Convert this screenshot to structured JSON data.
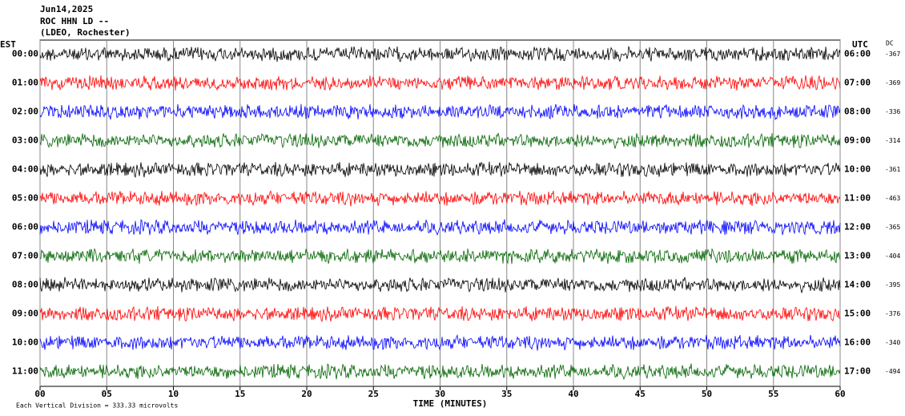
{
  "chart_data": {
    "type": "seismogram",
    "title": "Jun14,2025",
    "subtitle": "ROC HHN LD --",
    "station": "(LDEO, Rochester)",
    "left_axis_label": "EST",
    "right_axis_label": "UTC",
    "dc_label": "DC",
    "x_label": "TIME (MINUTES)",
    "scale_note": "Each Vertical Division =  333.33 microvolts",
    "xlim": [
      0,
      60
    ],
    "xticks": [
      {
        "value": 0,
        "label": "00"
      },
      {
        "value": 5,
        "label": "05"
      },
      10,
      15,
      20,
      25,
      30,
      35,
      40,
      45,
      50,
      55,
      60
    ],
    "grid": true,
    "rows": [
      {
        "est": "00:00",
        "utc": "06:00",
        "dc": -367,
        "color": "#000000"
      },
      {
        "est": "01:00",
        "utc": "07:00",
        "dc": -369,
        "color": "#ff0000"
      },
      {
        "est": "02:00",
        "utc": "08:00",
        "dc": -336,
        "color": "#0000ff"
      },
      {
        "est": "03:00",
        "utc": "09:00",
        "dc": -314,
        "color": "#006400"
      },
      {
        "est": "04:00",
        "utc": "10:00",
        "dc": -361,
        "color": "#000000"
      },
      {
        "est": "05:00",
        "utc": "11:00",
        "dc": -463,
        "color": "#ff0000"
      },
      {
        "est": "06:00",
        "utc": "12:00",
        "dc": -365,
        "color": "#0000ff"
      },
      {
        "est": "07:00",
        "utc": "13:00",
        "dc": -404,
        "color": "#006400"
      },
      {
        "est": "08:00",
        "utc": "14:00",
        "dc": -395,
        "color": "#000000"
      },
      {
        "est": "09:00",
        "utc": "15:00",
        "dc": -376,
        "color": "#ff0000"
      },
      {
        "est": "10:00",
        "utc": "16:00",
        "dc": -340,
        "color": "#0000ff"
      },
      {
        "est": "11:00",
        "utc": "17:00",
        "dc": -494,
        "color": "#006400"
      }
    ]
  }
}
